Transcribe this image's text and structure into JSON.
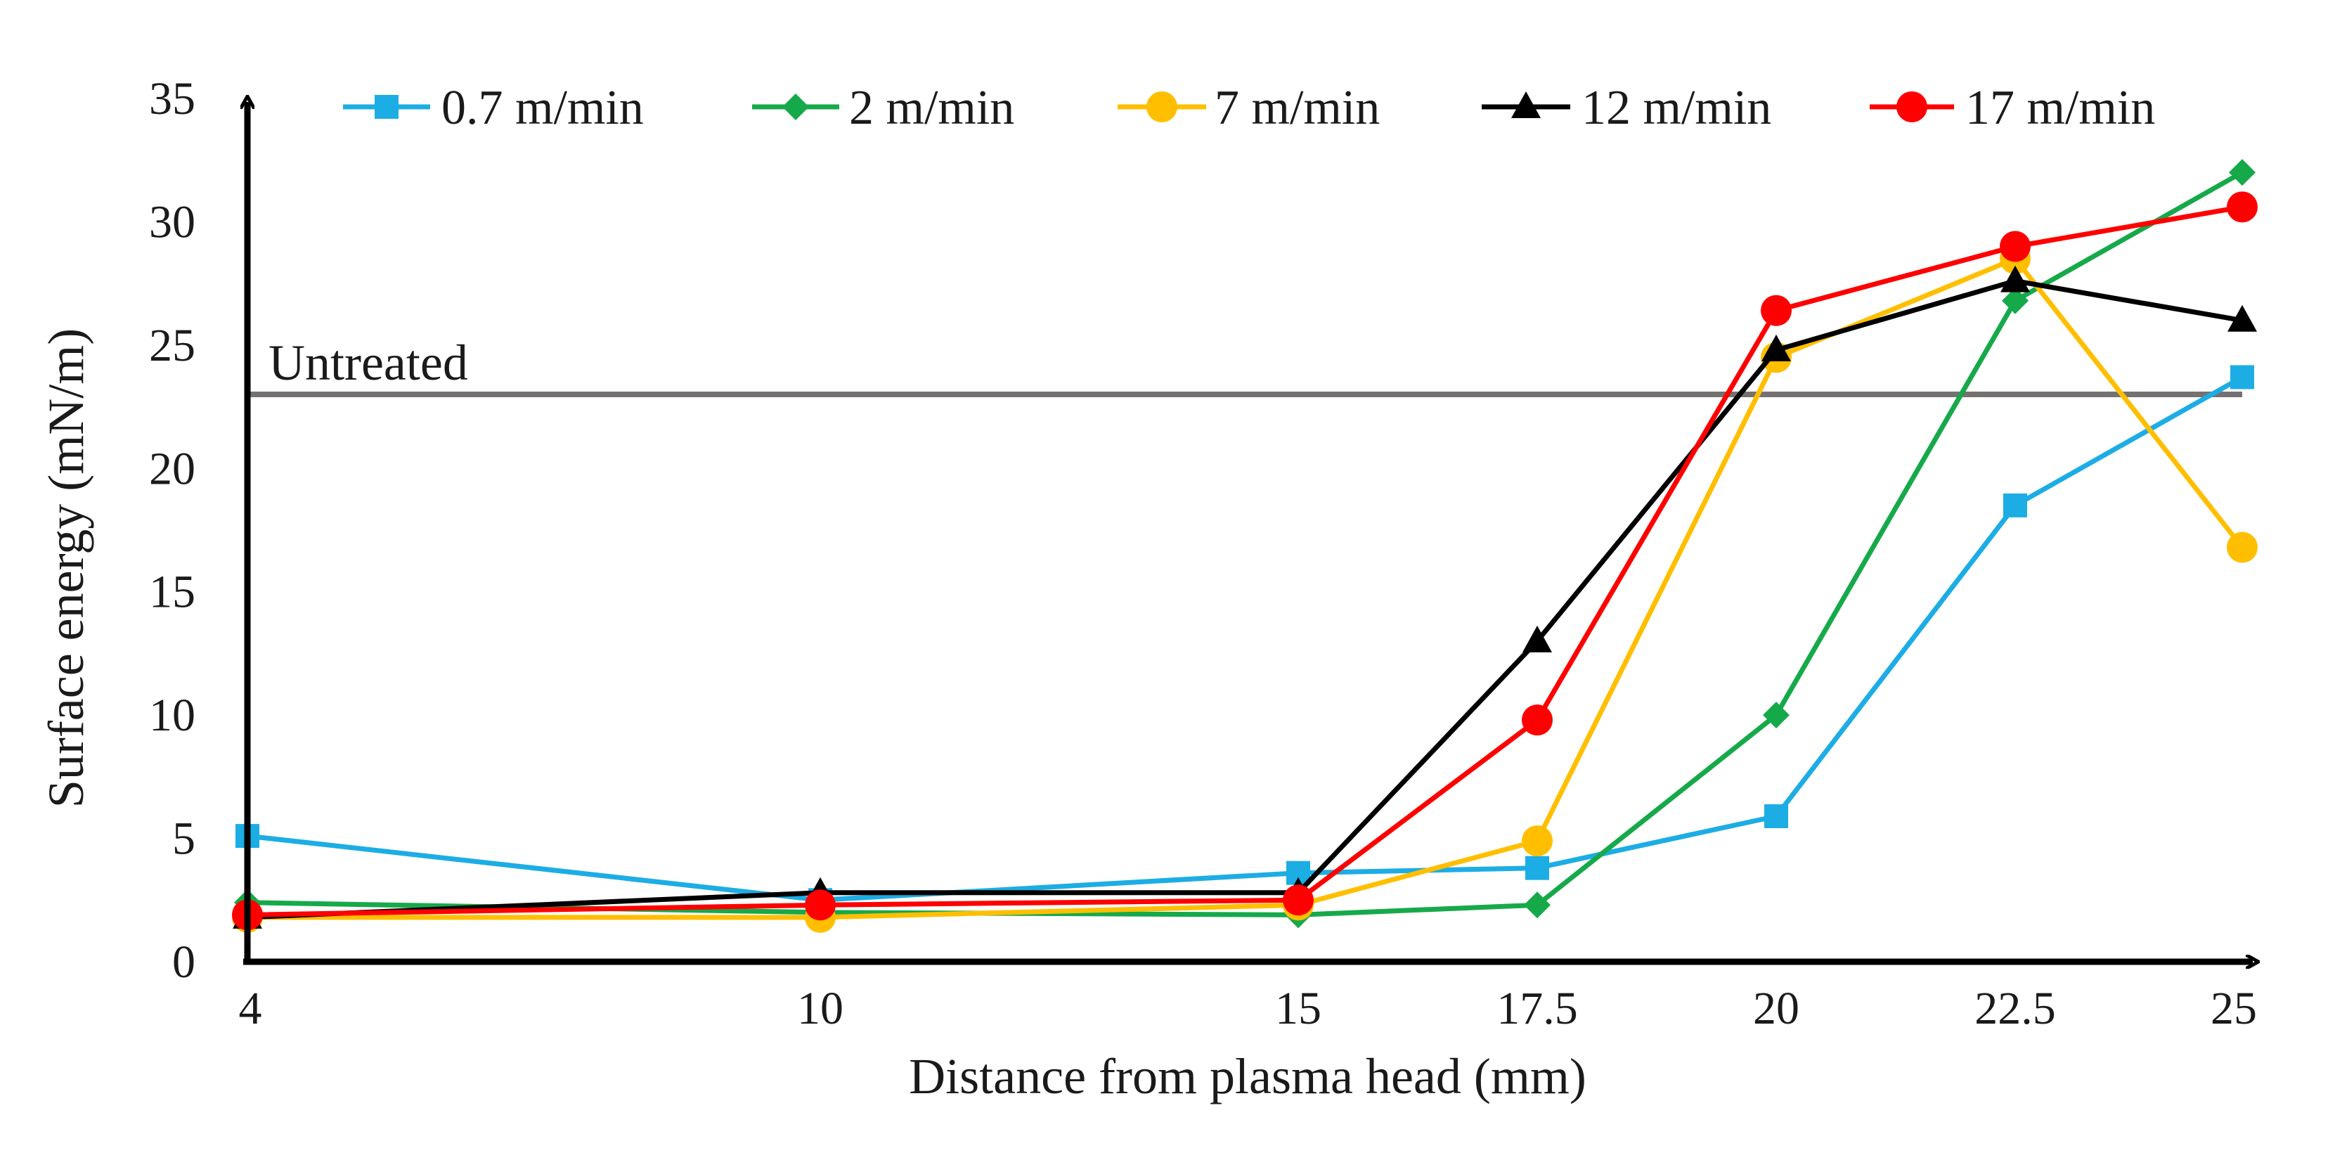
{
  "chart_data": {
    "type": "line",
    "title": "",
    "xlabel": "Distance from plasma head (mm)",
    "ylabel": "Surface energy (mN/m)",
    "categories": [
      "4",
      "10",
      "15",
      "17.5",
      "20",
      "22.5",
      "25"
    ],
    "ylim": [
      0,
      35
    ],
    "yticks": [
      "0",
      "5",
      "10",
      "15",
      "20",
      "25",
      "30",
      "35"
    ],
    "grid": false,
    "legend_position": "top",
    "reference_line": {
      "label": "Untreated",
      "value": 23,
      "color": "#767171"
    },
    "series": [
      {
        "name": "0.7 m/min",
        "color": "#1CADE4",
        "marker": "square",
        "values": [
          5.1,
          2.5,
          3.6,
          3.8,
          5.9,
          18.5,
          23.7
        ]
      },
      {
        "name": "2 m/min",
        "color": "#16A94A",
        "marker": "diamond",
        "values": [
          2.4,
          2.0,
          1.9,
          2.3,
          10.0,
          26.8,
          32.0
        ]
      },
      {
        "name": "7 m/min",
        "color": "#FFBF00",
        "marker": "circle",
        "values": [
          1.8,
          1.8,
          2.3,
          4.9,
          24.5,
          28.5,
          16.8
        ]
      },
      {
        "name": "12 m/min",
        "color": "#000000",
        "marker": "triangle",
        "values": [
          1.8,
          2.8,
          2.8,
          13.0,
          24.8,
          27.6,
          26.0
        ]
      },
      {
        "name": "17 m/min",
        "color": "#FF0000",
        "marker": "circle",
        "values": [
          1.9,
          2.3,
          2.5,
          9.8,
          26.4,
          29.0,
          30.6
        ]
      }
    ]
  }
}
